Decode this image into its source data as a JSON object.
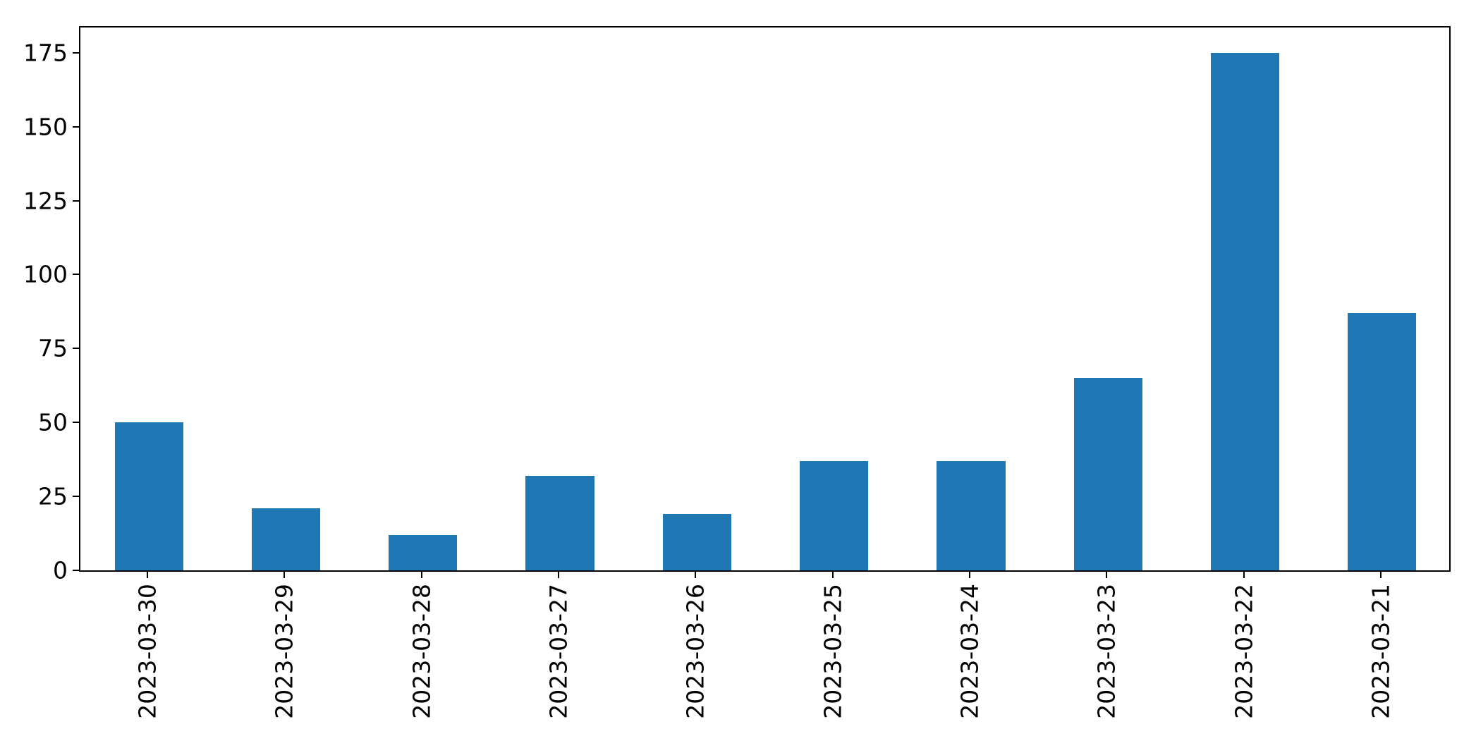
{
  "chart_data": {
    "type": "bar",
    "title": "",
    "xlabel": "",
    "ylabel": "",
    "categories": [
      "2023-03-30",
      "2023-03-29",
      "2023-03-28",
      "2023-03-27",
      "2023-03-26",
      "2023-03-25",
      "2023-03-24",
      "2023-03-23",
      "2023-03-22",
      "2023-03-21"
    ],
    "values": [
      50,
      21,
      12,
      32,
      19,
      37,
      37,
      65,
      175,
      87
    ],
    "yticks": [
      0,
      25,
      50,
      75,
      100,
      125,
      150,
      175
    ],
    "ylim": [
      0,
      184
    ],
    "bar_color": "#1f77b4",
    "bar_width_fraction": 0.5,
    "x_tick_rotation_deg": 90,
    "grid": false,
    "legend": null,
    "background_color": "#ffffff",
    "spine_color": "#000000",
    "text_color": "#000000"
  }
}
